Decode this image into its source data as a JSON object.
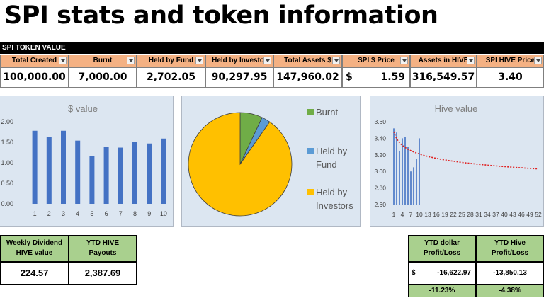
{
  "title": "SPI stats and token information",
  "section_label": "SPI TOKEN VALUE",
  "token_table": {
    "headers": [
      "Total Created",
      "Burnt",
      "Held by Fund",
      "Held by Investor",
      "Total Assets $",
      "SPI $ Price",
      "Assets in HIVE",
      "SPI HIVE Price"
    ],
    "values": [
      "100,000.00",
      "7,000.00",
      "2,702.05",
      "90,297.95",
      "147,960.02",
      "1.59",
      "316,549.57",
      "3.40"
    ],
    "price_currency": "$"
  },
  "chart_data": [
    {
      "type": "bar",
      "title": "$ value",
      "categories": [
        "1",
        "2",
        "3",
        "4",
        "5",
        "6",
        "7",
        "8",
        "9",
        "10"
      ],
      "values": [
        1.78,
        1.63,
        1.78,
        1.54,
        1.16,
        1.38,
        1.37,
        1.51,
        1.47,
        1.59
      ],
      "ylim": [
        0,
        2.0
      ],
      "yticks": [
        "0.00",
        "0.50",
        "1.00",
        "1.50",
        "2.00"
      ],
      "color": "#4472c4"
    },
    {
      "type": "pie",
      "labels": [
        "Burnt",
        "Held by Fund",
        "Held by Investors"
      ],
      "legend_lines": [
        [
          "Burnt"
        ],
        [
          "Held by",
          "Fund"
        ],
        [
          "Held by",
          "Investors"
        ]
      ],
      "values": [
        7000.0,
        2702.05,
        90297.95
      ],
      "colors": [
        "#70ad47",
        "#5b9bd5",
        "#ffc000"
      ],
      "legend": "right"
    },
    {
      "type": "bar",
      "title": "Hive value",
      "x": [
        1,
        2,
        3,
        4,
        5,
        6,
        7,
        8,
        9,
        10
      ],
      "values": [
        3.52,
        3.47,
        3.25,
        3.4,
        3.42,
        3.3,
        3.0,
        3.05,
        3.15,
        3.4
      ],
      "ylim": [
        2.6,
        3.6
      ],
      "yticks": [
        "2.60",
        "2.80",
        "3.00",
        "3.20",
        "3.40",
        "3.60"
      ],
      "xticks": [
        "1",
        "4",
        "7",
        "10",
        "13",
        "16",
        "19",
        "22",
        "25",
        "28",
        "31",
        "34",
        "37",
        "40",
        "43",
        "46",
        "49",
        "52"
      ],
      "xlim": [
        1,
        52
      ],
      "trendline": "power",
      "color": "#4472c4",
      "trend_color": "#e02020"
    }
  ],
  "dividend": {
    "headers": [
      [
        "Weekly Dividend",
        "HIVE value"
      ],
      [
        "YTD HIVE",
        "Payouts"
      ]
    ],
    "values": [
      "224.57",
      "2,387.69"
    ]
  },
  "profit_loss": {
    "headers": [
      [
        "YTD dollar",
        "Profit/Loss"
      ],
      [
        "YTD Hive",
        "Profit/Loss"
      ]
    ],
    "currency": "$",
    "values": [
      "-16,622.97",
      "-13,850.13"
    ],
    "percents": [
      "-11.23%",
      "-4.38%"
    ]
  }
}
